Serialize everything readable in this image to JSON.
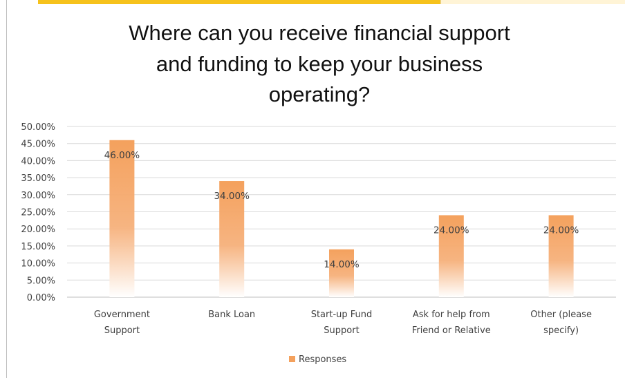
{
  "chart_data": {
    "type": "bar",
    "title_lines": [
      "Where can you receive financial support",
      "and funding to keep your business",
      "operating?"
    ],
    "categories": [
      [
        "Government",
        "Support"
      ],
      [
        "Bank Loan"
      ],
      [
        "Start-up Fund",
        "Support"
      ],
      [
        "Ask for help from",
        "Friend or Relative"
      ],
      [
        "Other (please",
        "specify)"
      ]
    ],
    "series": [
      {
        "name": "Responses",
        "values": [
          46,
          34,
          14,
          24,
          24
        ],
        "labels": [
          "46.00%",
          "34.00%",
          "14.00%",
          "24.00%",
          "24.00%"
        ],
        "color": "#f4a15d"
      }
    ],
    "yticks": [
      "0.00%",
      "5.00%",
      "10.00%",
      "15.00%",
      "20.00%",
      "25.00%",
      "30.00%",
      "35.00%",
      "40.00%",
      "45.00%",
      "50.00%"
    ],
    "ylim": [
      0,
      50
    ],
    "grid": true,
    "legend_position": "bottom"
  }
}
